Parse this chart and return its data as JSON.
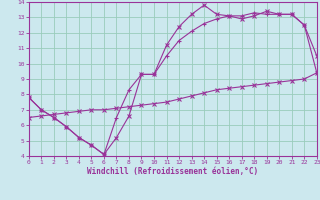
{
  "xlabel": "Windchill (Refroidissement éolien,°C)",
  "background_color": "#cce8ee",
  "grid_color": "#99ccbb",
  "line_color": "#993399",
  "xlim": [
    0,
    23
  ],
  "ylim": [
    4,
    14
  ],
  "xticks": [
    0,
    1,
    2,
    3,
    4,
    5,
    6,
    7,
    8,
    9,
    10,
    11,
    12,
    13,
    14,
    15,
    16,
    17,
    18,
    19,
    20,
    21,
    22,
    23
  ],
  "yticks": [
    4,
    5,
    6,
    7,
    8,
    9,
    10,
    11,
    12,
    13,
    14
  ],
  "line1_x": [
    0,
    1,
    2,
    3,
    4,
    5,
    6,
    7,
    8,
    9,
    10,
    11,
    12,
    13,
    14,
    15,
    16,
    17,
    18,
    19,
    20,
    21,
    22,
    23
  ],
  "line1_y": [
    7.8,
    7.0,
    6.5,
    5.9,
    5.2,
    4.7,
    4.1,
    5.2,
    6.6,
    9.3,
    9.3,
    11.2,
    12.4,
    13.2,
    13.8,
    13.2,
    13.1,
    12.9,
    13.1,
    13.4,
    13.2,
    13.2,
    12.5,
    10.5
  ],
  "line2_x": [
    0,
    1,
    2,
    3,
    4,
    5,
    6,
    7,
    8,
    9,
    10,
    11,
    12,
    13,
    14,
    15,
    16,
    17,
    18,
    19,
    20,
    21,
    22,
    23
  ],
  "line2_y": [
    7.8,
    7.0,
    6.5,
    5.9,
    5.2,
    4.7,
    4.1,
    6.5,
    8.3,
    9.3,
    9.3,
    10.5,
    11.5,
    12.1,
    12.6,
    12.9,
    13.1,
    13.1,
    13.3,
    13.2,
    13.2,
    13.2,
    12.5,
    9.4
  ],
  "line3_x": [
    0,
    1,
    2,
    3,
    4,
    5,
    6,
    7,
    8,
    9,
    10,
    11,
    12,
    13,
    14,
    15,
    16,
    17,
    18,
    19,
    20,
    21,
    22,
    23
  ],
  "line3_y": [
    6.5,
    6.6,
    6.7,
    6.8,
    6.9,
    7.0,
    7.0,
    7.1,
    7.2,
    7.3,
    7.4,
    7.5,
    7.7,
    7.9,
    8.1,
    8.3,
    8.4,
    8.5,
    8.6,
    8.7,
    8.8,
    8.9,
    9.0,
    9.4
  ]
}
